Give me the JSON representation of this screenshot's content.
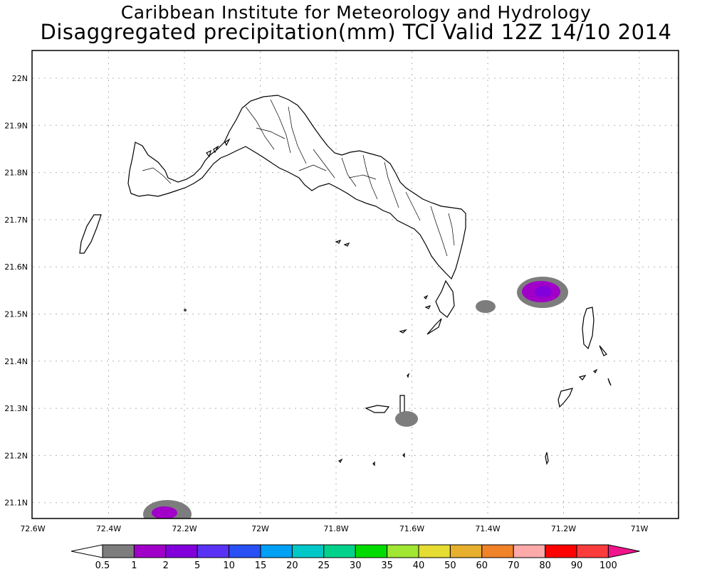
{
  "header": {
    "line1": "Caribbean Institute for Meteorology and Hydrology",
    "line2": "Disaggregated precipitation(mm) TCI Valid 12Z 14/10 2014"
  },
  "axes": {
    "lon_labels": [
      "72.6W",
      "72.4W",
      "72.2W",
      "72W",
      "71.8W",
      "71.6W",
      "71.4W",
      "71.2W",
      "71W"
    ],
    "lat_labels": [
      "22N",
      "21.9N",
      "21.8N",
      "21.7N",
      "21.6N",
      "21.5N",
      "21.4N",
      "21.3N",
      "21.2N",
      "21.1N"
    ]
  },
  "colorbar": {
    "labels": [
      "0.5",
      "1",
      "2",
      "5",
      "10",
      "15",
      "20",
      "25",
      "30",
      "35",
      "40",
      "50",
      "60",
      "70",
      "80",
      "90",
      "100"
    ],
    "colors": [
      "#7d7d7d",
      "#a000c8",
      "#8200dc",
      "#5a32f5",
      "#2850f5",
      "#00a0f5",
      "#00c8c8",
      "#00d28c",
      "#00dc00",
      "#a0e632",
      "#e6dc32",
      "#e6af2d",
      "#f08228",
      "#ffaaaa",
      "#ff0000",
      "#fa3c3c"
    ],
    "under_color": "#ffffff",
    "over_color": "#f0148c"
  },
  "precip_cells": [
    {
      "id": "cell-east",
      "lon": -71.26,
      "lat": 21.545,
      "max_class": "2"
    },
    {
      "id": "cell-southwest",
      "lon": -72.26,
      "lat": 21.075,
      "max_class": "2"
    },
    {
      "id": "cell-center-east",
      "lon": -71.41,
      "lat": 21.515,
      "max_class": "1"
    },
    {
      "id": "cell-south",
      "lon": -71.625,
      "lat": 21.275,
      "max_class": "1"
    }
  ],
  "colors": {
    "frame": "#000000",
    "grid": "#b4b4b4",
    "coast": "#000000"
  }
}
